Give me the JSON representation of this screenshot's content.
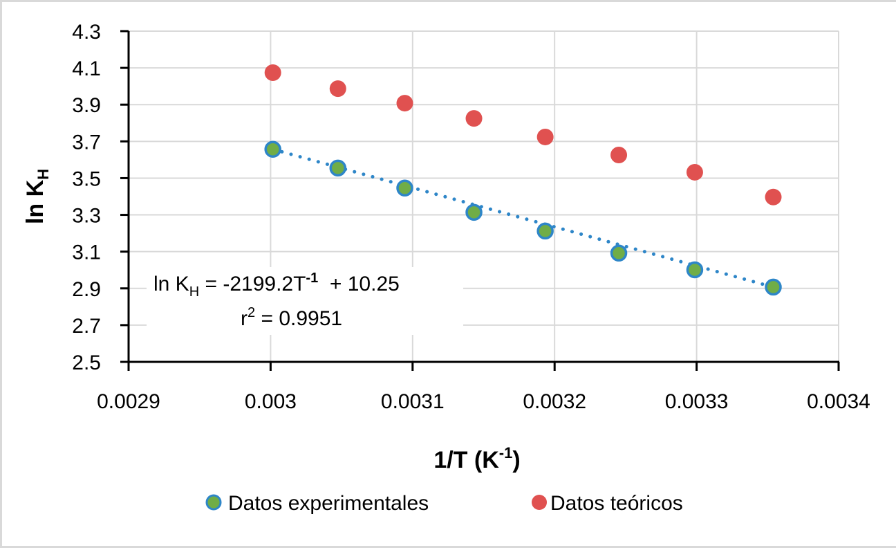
{
  "chart_data": {
    "type": "scatter",
    "title": "",
    "xlabel": "1/T (K",
    "xlabel_sup": "-1",
    "xlabel_close": ")",
    "ylabel": "ln K",
    "ylabel_sub": "H",
    "xlim": [
      0.0029,
      0.0034
    ],
    "ylim": [
      2.5,
      4.3
    ],
    "x_ticks": [
      0.0029,
      0.003,
      0.0031,
      0.0032,
      0.0033,
      0.0034
    ],
    "x_tick_labels": [
      "0.0029",
      "0.003",
      "0.0031",
      "0.0032",
      "0.0033",
      "0.0034"
    ],
    "y_ticks": [
      2.5,
      2.7,
      2.9,
      3.1,
      3.3,
      3.5,
      3.7,
      3.9,
      4.1,
      4.3
    ],
    "y_tick_labels": [
      "2.5",
      "2.7",
      "2.9",
      "3.1",
      "3.3",
      "3.5",
      "3.7",
      "3.9",
      "4.1",
      "4.3"
    ],
    "grid": true,
    "legend_position": "bottom",
    "series": [
      {
        "name": "Datos experimentales",
        "fill": "#70ad47",
        "stroke": "#2e86c8",
        "x": [
          0.0030016,
          0.0030474,
          0.0030945,
          0.0031432,
          0.0031934,
          0.0032452,
          0.0032987,
          0.003354
        ],
        "y": [
          3.657,
          3.555,
          3.446,
          3.314,
          3.212,
          3.092,
          3.001,
          2.907
        ]
      },
      {
        "name": "Datos teóricos",
        "fill": "#e05150",
        "stroke": "#e05150",
        "x": [
          0.0030016,
          0.0030474,
          0.0030945,
          0.0031432,
          0.0031934,
          0.0032452,
          0.0032987,
          0.003354
        ],
        "y": [
          4.074,
          3.987,
          3.908,
          3.825,
          3.724,
          3.626,
          3.532,
          3.397
        ]
      }
    ],
    "trendline": {
      "series": "Datos experimentales",
      "type": "linear",
      "style": "dotted",
      "color": "#2e86c8",
      "slope": -2199.2,
      "intercept": 10.25,
      "r2": 0.9951
    },
    "annotation": {
      "line1_a": "ln K",
      "line1_sub": "H",
      "line1_b": " = -2199.2T",
      "line1_sup": "-1",
      "line1_c": "  + 10.25",
      "line2_a": "r",
      "line2_sup": "2",
      "line2_b": " = 0.9951"
    }
  }
}
